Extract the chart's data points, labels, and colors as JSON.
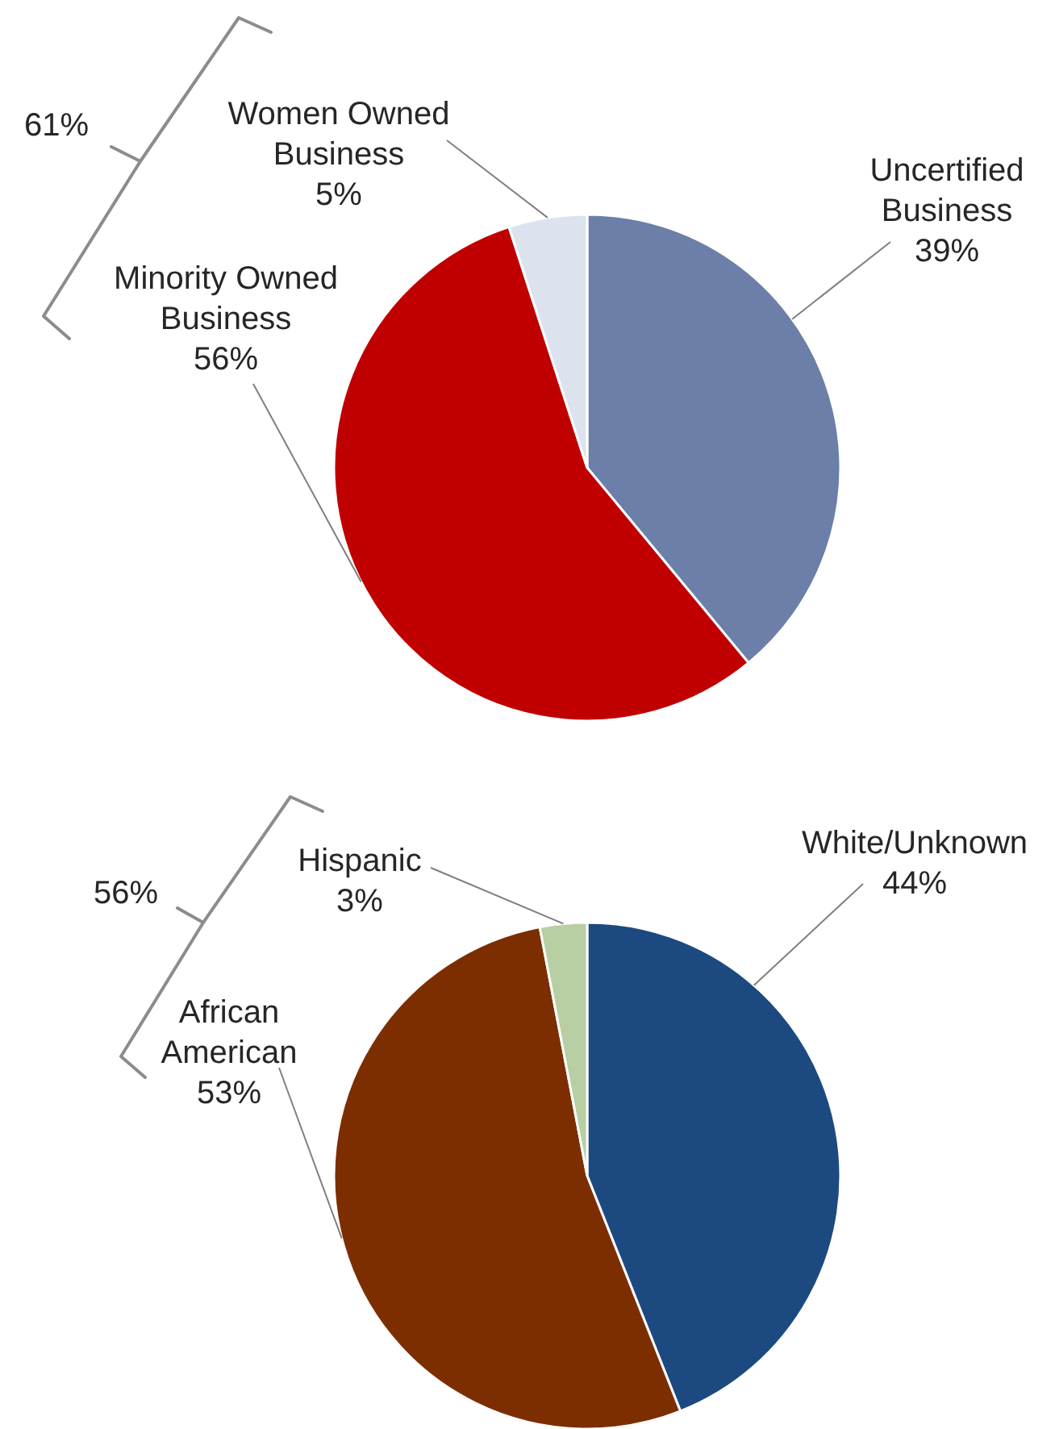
{
  "chart_data": [
    {
      "type": "pie",
      "categories": [
        "Uncertified Business",
        "Minority Owned Business",
        "Women Owned Business"
      ],
      "values": [
        39,
        56,
        5
      ],
      "colors": [
        "#6b7fa8",
        "#c00000",
        "#dce3ef"
      ],
      "value_labels": [
        "39%",
        "56%",
        "5%"
      ],
      "annotations": [
        "61%"
      ]
    },
    {
      "type": "pie",
      "categories": [
        "White/Unknown",
        "African American",
        "Hispanic"
      ],
      "values": [
        44,
        53,
        3
      ],
      "colors": [
        "#1c4a80",
        "#7d2e00",
        "#b7cfa2"
      ],
      "value_labels": [
        "44%",
        "53%",
        "3%"
      ],
      "annotations": [
        "56%"
      ]
    }
  ]
}
